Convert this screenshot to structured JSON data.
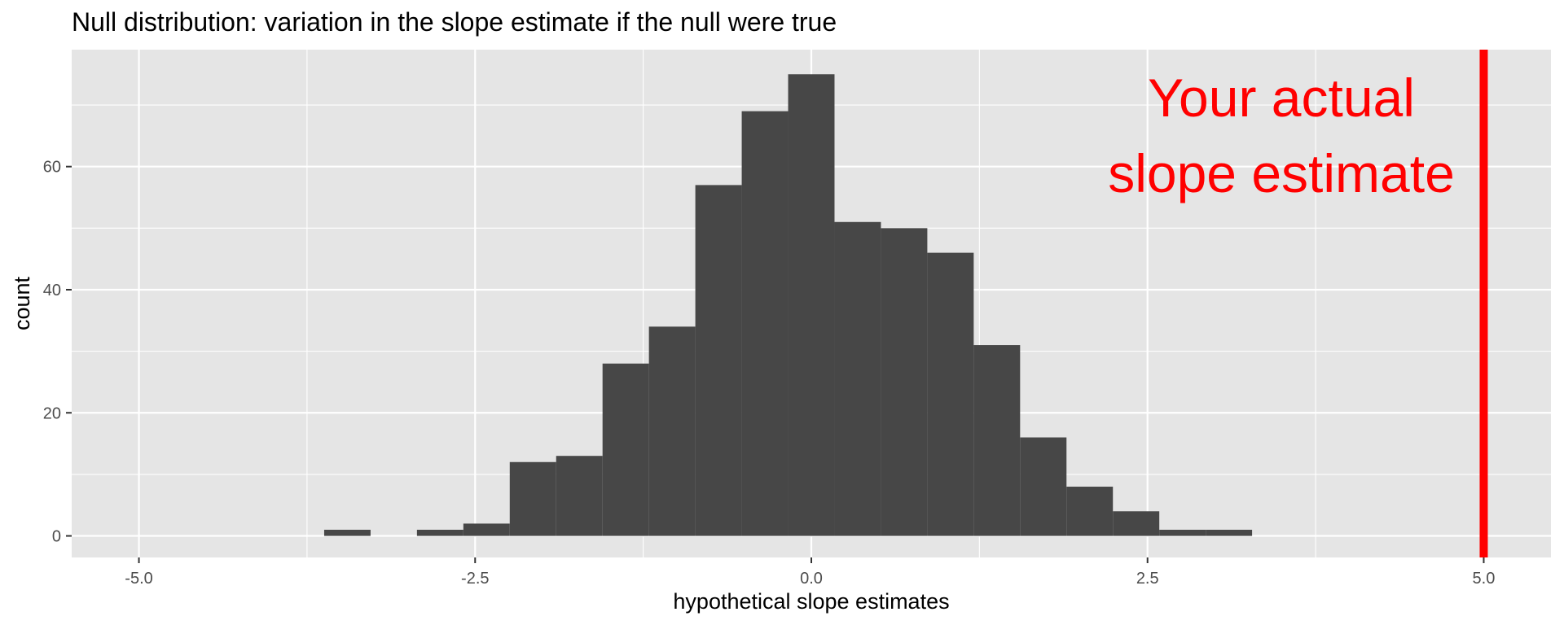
{
  "chart_data": {
    "type": "bar",
    "title": "Null distribution: variation in the slope estimate if the null were true",
    "xlabel": "hypothetical slope estimates",
    "ylabel": "count",
    "xlim": [
      -5.5,
      5.5
    ],
    "ylim": [
      -3.5,
      79
    ],
    "x_ticks": [
      -5.0,
      -2.5,
      0.0,
      2.5,
      5.0
    ],
    "x_tick_labels": [
      "-5.0",
      "-2.5",
      "0.0",
      "2.5",
      "5.0"
    ],
    "y_ticks": [
      0,
      20,
      40,
      60
    ],
    "y_tick_labels": [
      "0",
      "20",
      "40",
      "60"
    ],
    "grid": true,
    "bin_width": 0.345,
    "bins": [
      {
        "x": -3.45,
        "count": 1
      },
      {
        "x": -2.76,
        "count": 1
      },
      {
        "x": -2.415,
        "count": 2
      },
      {
        "x": -2.07,
        "count": 12
      },
      {
        "x": -1.725,
        "count": 13
      },
      {
        "x": -1.38,
        "count": 28
      },
      {
        "x": -1.035,
        "count": 34
      },
      {
        "x": -0.69,
        "count": 57
      },
      {
        "x": -0.345,
        "count": 69
      },
      {
        "x": 0.0,
        "count": 75
      },
      {
        "x": 0.345,
        "count": 51
      },
      {
        "x": 0.69,
        "count": 50
      },
      {
        "x": 1.035,
        "count": 46
      },
      {
        "x": 1.38,
        "count": 31
      },
      {
        "x": 1.725,
        "count": 16
      },
      {
        "x": 2.07,
        "count": 8
      },
      {
        "x": 2.415,
        "count": 4
      },
      {
        "x": 2.76,
        "count": 1
      },
      {
        "x": 3.105,
        "count": 1
      }
    ],
    "actual_estimate": 5.0,
    "annotation_lines": [
      "Your actual",
      "slope estimate"
    ],
    "colors": {
      "panel": "#e5e5e5",
      "grid_major": "#ffffff",
      "bar": "#474747",
      "highlight": "#ff0000",
      "tick": "#333333"
    }
  }
}
